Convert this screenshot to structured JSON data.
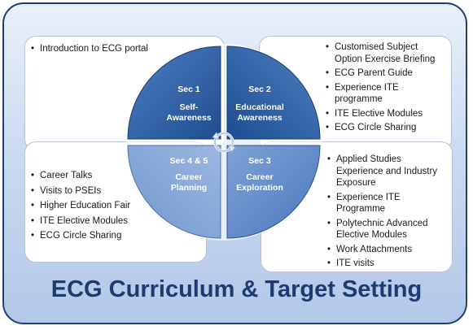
{
  "title": "ECG Curriculum & Target Setting",
  "colors": {
    "frame_border": "#1f3e72",
    "q1": "#2a5ea6",
    "q2": "#2a5ea6",
    "q3": "#6e95cf",
    "q4": "#8aa8d8",
    "title": "#1c3b70"
  },
  "quadrants": [
    {
      "sec": "Sec 1",
      "line1": "Self-",
      "line2": "Awareness"
    },
    {
      "sec": "Sec 2",
      "line1": "Educational",
      "line2": "Awareness"
    },
    {
      "sec": "Sec 3",
      "line1": "Career",
      "line2": "Exploration"
    },
    {
      "sec": "Sec 4 & 5",
      "line1": "Career",
      "line2": "Planning"
    }
  ],
  "lists": {
    "top_left": [
      "Introduction to ECG portal"
    ],
    "top_right": [
      "Customised Subject Option Exercise Briefing",
      "ECG Parent Guide",
      "Experience ITE programme",
      "ITE Elective Modules",
      "ECG Circle Sharing"
    ],
    "bottom_left": [
      "Career Talks",
      "Visits to PSEIs",
      "Higher Education Fair",
      "ITE Elective Modules",
      "ECG Circle Sharing"
    ],
    "bottom_right": [
      "Applied Studies Experience and Industry Exposure",
      "Experience ITE Programme",
      "Polytechnic Advanced Elective Modules",
      "Work Attachments",
      "ITE visits"
    ]
  },
  "center_icon": "cycle-arrows-icon"
}
